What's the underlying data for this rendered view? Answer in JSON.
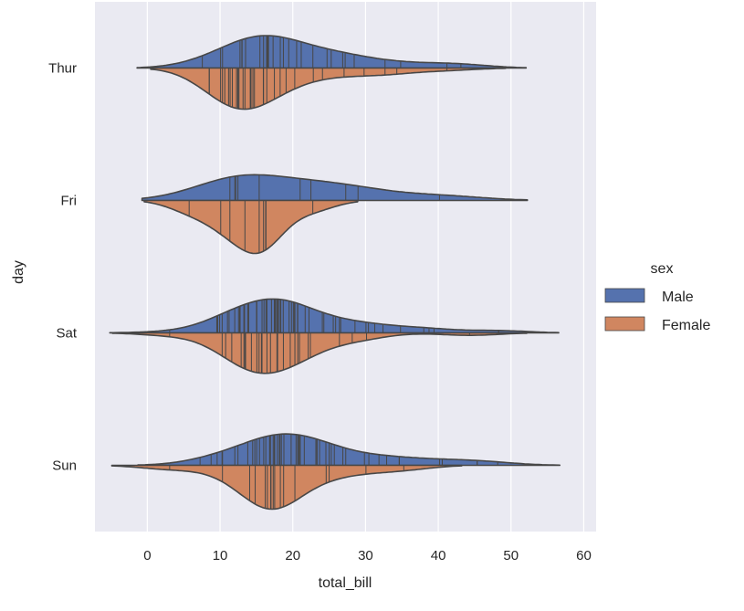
{
  "chart_data": {
    "type": "violin",
    "variant": "split violin with stick inner marks",
    "xlabel": "total_bill",
    "ylabel": "day",
    "xlim": [
      -7.2,
      61.7
    ],
    "xticks": [
      0,
      10,
      20,
      30,
      40,
      50,
      60
    ],
    "categories": [
      "Thur",
      "Fri",
      "Sat",
      "Sun"
    ],
    "grid": true,
    "legend": {
      "title": "sex",
      "placement": "center-right",
      "entries": [
        "Male",
        "Female"
      ]
    },
    "colors": {
      "Male": "#5572ae",
      "Female": "#d08660",
      "outline": "#474747",
      "background": "#eaeaf2"
    },
    "series": [
      {
        "name": "Male",
        "values": {
          "Thur": [
            27.2,
            22.76,
            17.29,
            19.44,
            16.66,
            10.07,
            32.68,
            15.98,
            34.83,
            13.03,
            18.28,
            24.71,
            21.16,
            28.44,
            15.48,
            16.58,
            7.56,
            10.34,
            43.11,
            13.0,
            13.51,
            18.71,
            12.74,
            13.0,
            16.4,
            20.53,
            16.47,
            26.86,
            25.28,
            41.19
          ],
          "Fri": [
            28.97,
            22.49,
            40.17,
            27.28,
            12.03,
            21.01,
            12.46,
            11.35,
            15.38,
            12.16
          ],
          "Sat": [
            20.65,
            17.92,
            20.29,
            15.77,
            39.42,
            19.82,
            17.81,
            13.37,
            12.69,
            21.7,
            9.55,
            18.35,
            15.06,
            20.69,
            17.78,
            24.06,
            16.31,
            18.69,
            31.27,
            16.04,
            17.46,
            13.94,
            9.68,
            30.4,
            18.29,
            22.23,
            32.4,
            28.55,
            18.04,
            12.54,
            10.29,
            34.81,
            9.94,
            25.56,
            19.49,
            38.01,
            26.41,
            11.24,
            48.27,
            20.29,
            13.81,
            11.02,
            18.29,
            17.59,
            20.08,
            16.45,
            3.07,
            20.23,
            15.01,
            12.02,
            17.07,
            26.59,
            38.73,
            24.27,
            12.76,
            30.06,
            25.89,
            48.33,
            13.27
          ],
          "Sun": [
            10.34,
            21.01,
            23.68,
            25.29,
            8.77,
            26.88,
            15.04,
            14.78,
            10.27,
            15.42,
            18.43,
            21.58,
            16.29,
            17.46,
            34.65,
            20.76,
            40.55,
            20.69,
            20.9,
            30.46,
            18.15,
            23.33,
            45.35,
            23.17,
            40.17,
            27.28,
            12.03,
            21.01,
            12.46,
            18.24,
            17.31,
            16.93,
            25.0,
            16.82,
            7.25,
            31.85,
            16.82,
            32.9,
            17.89,
            14.48,
            34.63,
            34.65,
            23.33,
            45.35,
            23.17,
            40.55,
            20.69,
            48.17,
            18.78,
            24.55,
            25.71,
            17.51,
            13.81,
            16.0,
            19.77,
            29.85,
            20.45,
            9.6
          ]
        }
      },
      {
        "name": "Female",
        "values": {
          "Thur": [
            10.07,
            12.6,
            32.68,
            15.98,
            14.73,
            10.65,
            12.43,
            24.08,
            11.69,
            13.42,
            14.26,
            15.95,
            12.48,
            29.8,
            8.52,
            14.52,
            11.38,
            22.82,
            19.08,
            20.27,
            11.17,
            12.26,
            18.26,
            8.51,
            10.33,
            14.15,
            13.16,
            17.47,
            34.3,
            41.19,
            27.05,
            16.43
          ],
          "Fri": [
            5.75,
            16.32,
            22.75,
            11.35,
            15.38,
            13.42,
            15.98,
            16.27,
            10.09
          ],
          "Sat": [
            20.29,
            15.77,
            19.65,
            15.06,
            20.69,
            16.93,
            26.41,
            16.45,
            3.07,
            10.29,
            13.28,
            13.51,
            18.71,
            17.92,
            44.3,
            22.42,
            15.36,
            20.92,
            15.69,
            11.61,
            10.77,
            17.82,
            30.14,
            22.12,
            14.31,
            12.9,
            28.17,
            13.42
          ],
          "Sun": [
            16.99,
            24.59,
            35.26,
            14.83,
            10.33,
            16.97,
            18.74,
            20.29,
            16.21,
            17.31,
            14.07,
            25.0,
            17.51,
            18.29,
            3.07,
            16.5,
            30.06,
            16.99
          ]
        }
      }
    ]
  }
}
